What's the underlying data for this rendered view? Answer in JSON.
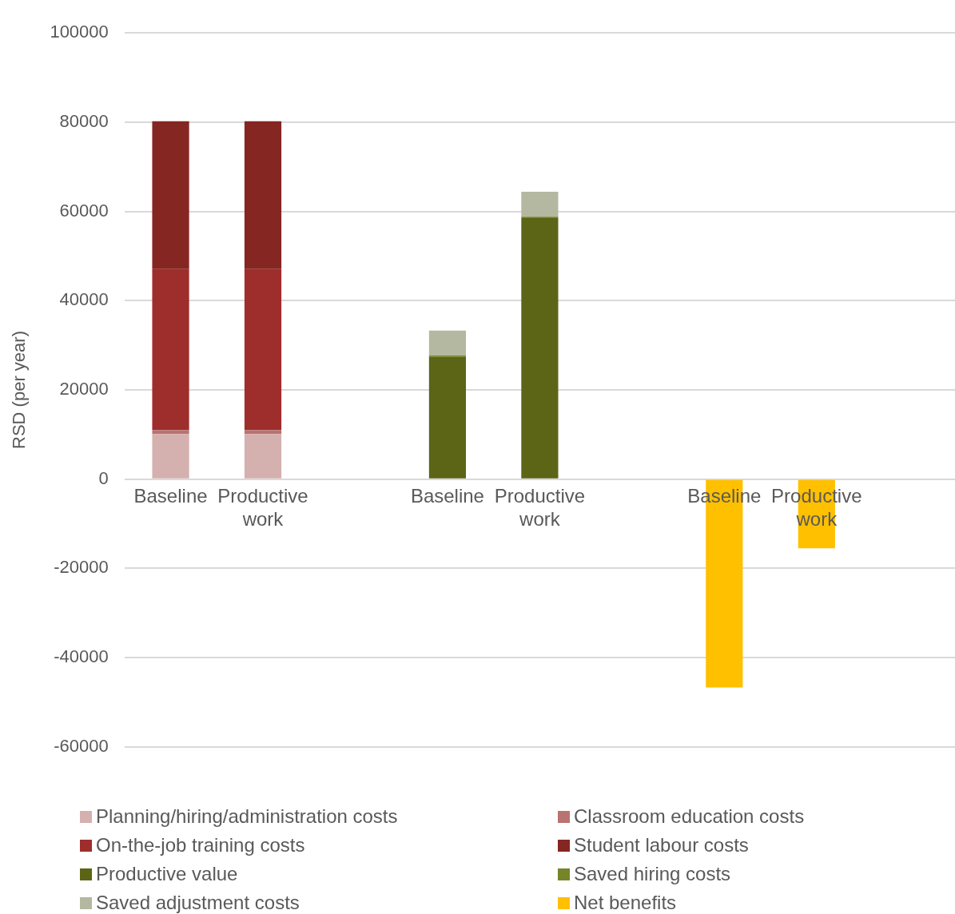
{
  "chart_data": {
    "type": "bar",
    "stacked": true,
    "ylabel": "RSD (per year)",
    "categories": [
      "Baseline",
      "Productive work",
      null,
      "Baseline",
      "Productive work",
      null,
      "Baseline",
      "Productive work",
      null
    ],
    "series": [
      {
        "name": "Planning/hiring/administration costs",
        "color": "#d4b0af",
        "values": [
          10100,
          10100,
          null,
          null,
          null,
          null,
          null,
          null,
          null
        ]
      },
      {
        "name": "Classroom education costs",
        "color": "#b97371",
        "values": [
          900,
          900,
          null,
          null,
          null,
          null,
          null,
          null,
          null
        ]
      },
      {
        "name": "On-the-job training costs",
        "color": "#9e2e2b",
        "values": [
          36100,
          36100,
          null,
          null,
          null,
          null,
          null,
          null,
          null
        ]
      },
      {
        "name": "Student labour costs",
        "color": "#852622",
        "values": [
          33100,
          33100,
          null,
          null,
          null,
          null,
          null,
          null,
          null
        ]
      },
      {
        "name": "Productive value",
        "color": "#5c6416",
        "values": [
          null,
          null,
          null,
          27400,
          58500,
          null,
          null,
          null,
          null
        ]
      },
      {
        "name": "Saved hiring costs",
        "color": "#76842a",
        "values": [
          null,
          null,
          null,
          300,
          300,
          null,
          null,
          null,
          null
        ]
      },
      {
        "name": "Saved adjustment costs",
        "color": "#b5b8a0",
        "values": [
          null,
          null,
          null,
          5600,
          5600,
          null,
          null,
          null,
          null
        ]
      },
      {
        "name": "Net benefits",
        "color": "#ffc000",
        "values": [
          null,
          null,
          null,
          null,
          null,
          null,
          -46700,
          -15500,
          null
        ]
      }
    ],
    "ylim": [
      -60000,
      100000
    ],
    "yticks": [
      -60000,
      -40000,
      -20000,
      0,
      20000,
      40000,
      60000,
      80000,
      100000
    ],
    "grid": "y",
    "legend": "bottom"
  }
}
